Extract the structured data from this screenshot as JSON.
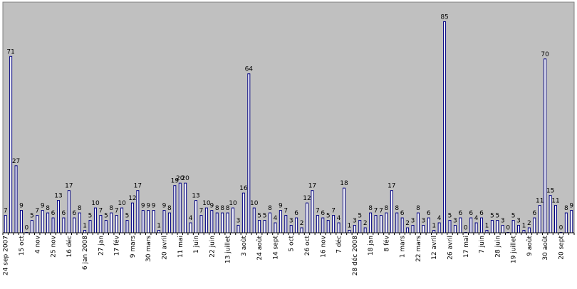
{
  "chart_data": {
    "type": "bar",
    "title": "",
    "xlabel": "",
    "ylabel": "",
    "ylim": [
      0,
      90
    ],
    "grid": false,
    "legend": "none",
    "colors": {
      "plot_background": "#c0c0c0",
      "bar_fill": "#ffffff",
      "bar_stroke": "#000080",
      "axis": "#000000"
    },
    "tick_labels": [
      "24 sep 2007",
      "15 oct",
      "4 nov",
      "25 nov",
      "16 déc",
      "6 jan 2008",
      "27 jan",
      "17 fév",
      "9 mars",
      "30 mars",
      "20 avril",
      "11 mai",
      "1 juin",
      "22 juin",
      "13 juillet",
      "3 août",
      "24 août",
      "14 sept",
      "5 oct",
      "26 oct",
      "16 nov",
      "7 déc",
      "28 déc 2008",
      "18 jan",
      "8 fév",
      "1 mars",
      "22 mars",
      "12 avril",
      "26 avril",
      "17 mai",
      "7 juin",
      "28 juin",
      "19 juillet",
      "9 août",
      "30 août",
      "20 sept"
    ],
    "values": [
      7,
      71,
      27,
      9,
      0,
      5,
      7,
      9,
      8,
      6,
      13,
      6,
      17,
      6,
      8,
      1,
      5,
      10,
      7,
      5,
      8,
      7,
      10,
      5,
      12,
      17,
      9,
      9,
      9,
      1,
      9,
      8,
      19,
      20,
      20,
      4,
      13,
      7,
      10,
      9,
      8,
      8,
      8,
      10,
      3,
      16,
      64,
      10,
      5,
      5,
      8,
      4,
      9,
      7,
      3,
      6,
      2,
      12,
      17,
      7,
      6,
      5,
      7,
      4,
      18,
      1,
      3,
      5,
      2,
      8,
      7,
      7,
      8,
      17,
      8,
      6,
      2,
      3,
      8,
      3,
      6,
      1,
      4,
      85,
      5,
      3,
      6,
      0,
      6,
      4,
      6,
      1,
      5,
      5,
      3,
      0,
      5,
      3,
      1,
      2,
      6,
      11,
      70,
      15,
      11,
      0,
      8,
      9
    ]
  }
}
